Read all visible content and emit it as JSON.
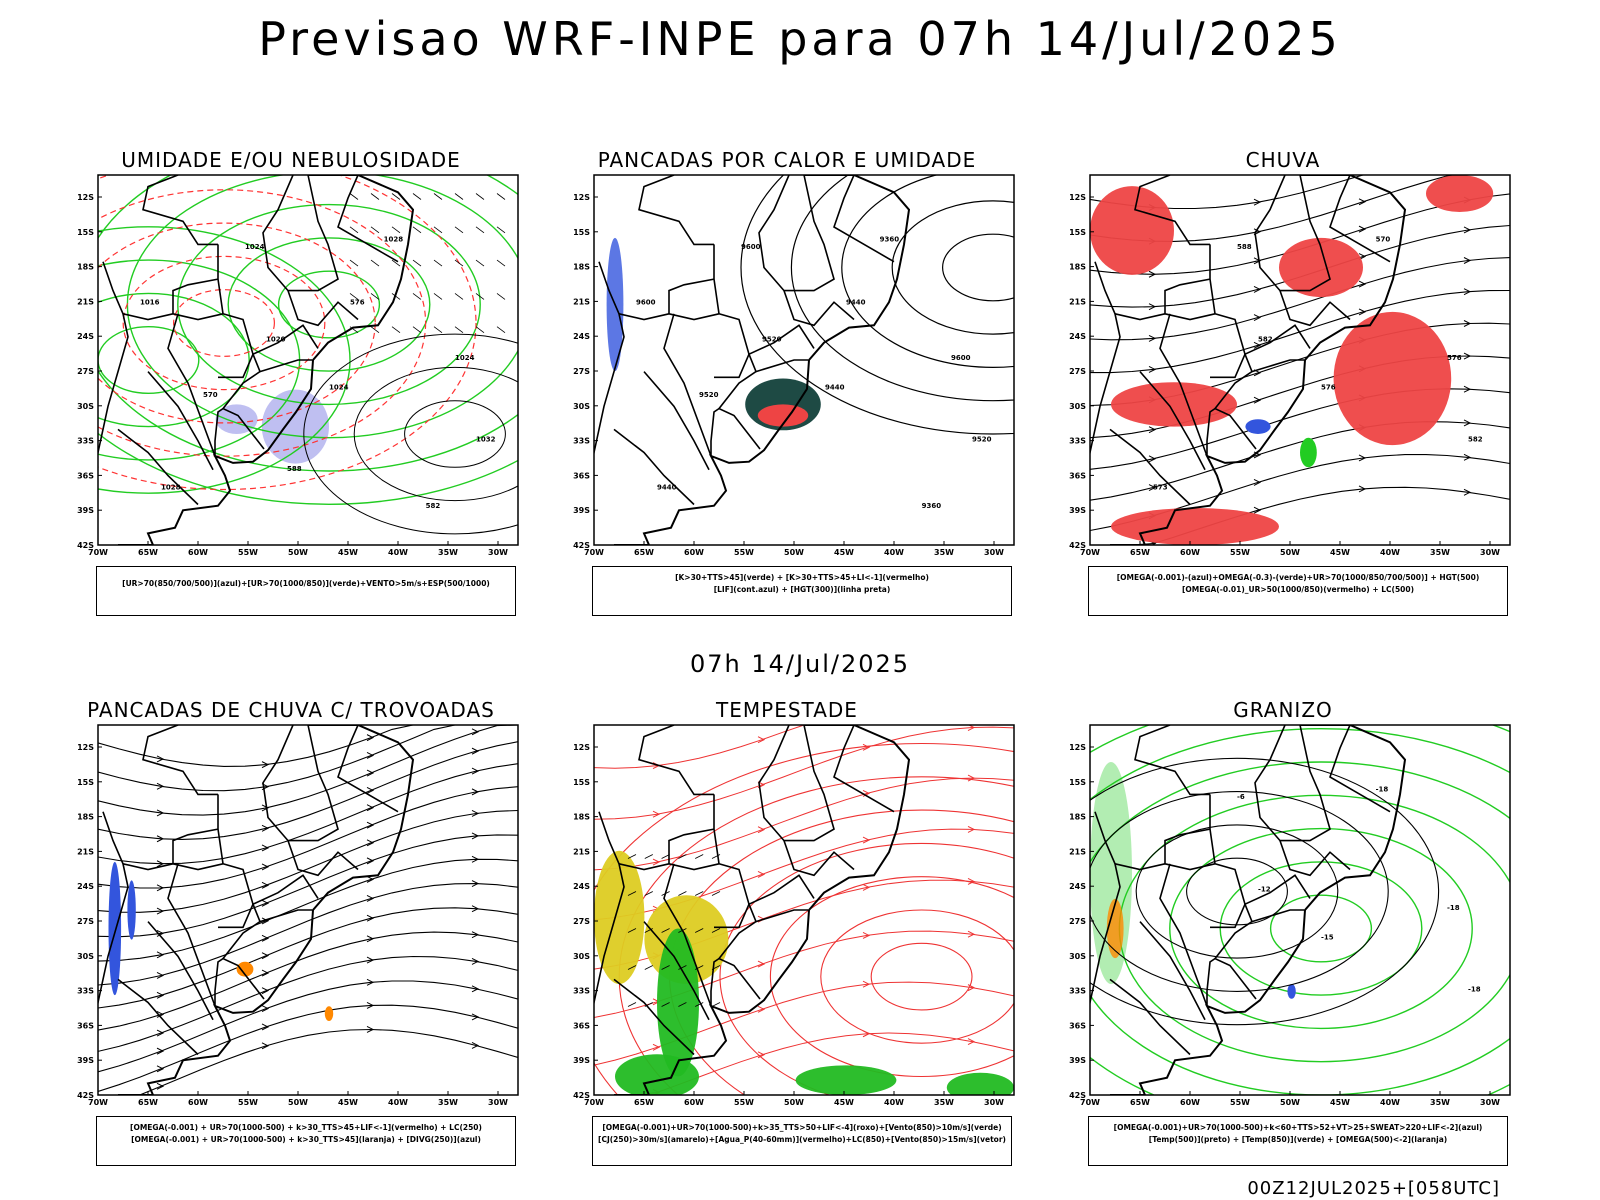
{
  "page_title": "Previsao WRF-INPE  para 07h 14/Jul/2025",
  "mid_title": "07h 14/Jul/2025",
  "footer": "00Z12JUL2025+[058UTC]",
  "axes": {
    "lat_labels": [
      "12S",
      "15S",
      "18S",
      "21S",
      "24S",
      "27S",
      "30S",
      "33S",
      "36S",
      "39S",
      "42S"
    ],
    "lon_labels": [
      "70W",
      "65W",
      "60W",
      "55W",
      "50W",
      "45W",
      "40W",
      "35W",
      "30W"
    ]
  },
  "panels": [
    {
      "title": "UMIDADE E/OU NEBULOSIDADE",
      "legend": [
        "[UR>70(850/700/500)](azul)+[UR>70(1000/850)](verde)+VENTO>5m/s+ESP(500/1000)"
      ],
      "contour_labels": [
        "1024",
        "1020",
        "1024",
        "1028",
        "1024",
        "1032",
        "1028",
        "1016",
        "570",
        "576",
        "582",
        "588"
      ]
    },
    {
      "title": "PANCADAS POR CALOR E UMIDADE",
      "legend": [
        "[K>30+TTS>45](verde) + [K>30+TTS>45+LI<-1](vermelho)",
        "[LIF](cont.azul) + [HGT(300)](linha preta)"
      ],
      "contour_labels": [
        "9600",
        "9520",
        "9440",
        "9360",
        "9600",
        "9520",
        "9440",
        "9600",
        "9520",
        "9440",
        "9360"
      ]
    },
    {
      "title": "CHUVA",
      "legend": [
        "[OMEGA(-0.001)-(azul)+OMEGA(-0.3)-(verde)+UR>70(1000/850/700/500)] + HGT(500)",
        "[OMEGA(-0.01)_UR>50(1000/850)(vermelho) + LC(500)"
      ],
      "contour_labels": [
        "588",
        "582",
        "576",
        "570",
        "576",
        "582",
        "573"
      ]
    },
    {
      "title": "PANCADAS DE CHUVA C/ TROVOADAS",
      "legend": [
        "[OMEGA(-0.001) + UR>70(1000-500) + k>30_TTS>45+LIF<-1](vermelho) + LC(250)",
        "[OMEGA(-0.001) + UR>70(1000-500) + k>30_TTS>45](laranja) + [DIVG(250)](azul)"
      ],
      "contour_labels": []
    },
    {
      "title": "TEMPESTADE",
      "legend": [
        "[OMEGA(-0.001)+UR>70(1000-500)+k>35_TTS>50+LIF<-4](roxo)+[Vento(850)>10m/s](verde)",
        "[CJ(250)>30m/s](amarelo)+[Agua_P(40-60mm)](vermelho)+LC(850)+[Vento(850)>15m/s](vetor)"
      ],
      "contour_labels": []
    },
    {
      "title": "GRANIZO",
      "legend": [
        "[OMEGA(-0.001)+UR>70(1000-500)+k<60+TTS>52+VT>25+SWEAT>220+LIF<-2](azul)",
        "[Temp(500)](preto) + [Temp(850)](verde) + [OMEGA(500)<-2](laranja)"
      ],
      "contour_labels": [
        "-6",
        "-12",
        "-15",
        "-18",
        "-18",
        "-18"
      ]
    }
  ]
}
